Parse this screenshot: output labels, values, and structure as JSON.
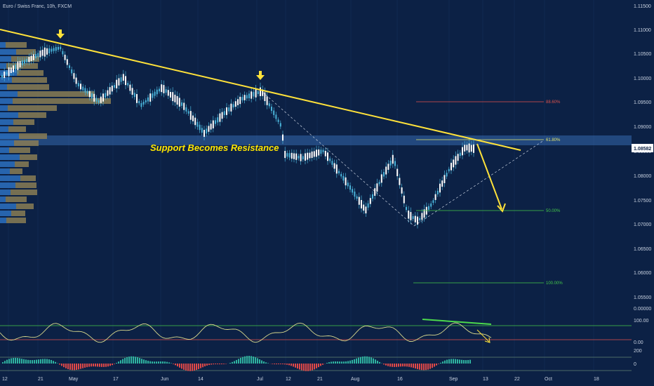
{
  "symbol_title": "Euro / Swiss Franc, 10h, FXCM",
  "price_axis": [
    "1.11500",
    "1.11000",
    "1.10500",
    "1.10000",
    "1.09500",
    "1.09000",
    "1.08500",
    "1.08000",
    "1.07500",
    "1.07000",
    "1.06500",
    "1.06000",
    "1.05500"
  ],
  "current_price": "1.08582",
  "annotation": "Support Becomes Resistance",
  "fib_levels": [
    {
      "label": "88.60%",
      "color": "#e0524c"
    },
    {
      "label": "61.80%",
      "color": "#e3e36b"
    },
    {
      "label": "50.00%",
      "color": "#44c84a"
    },
    {
      "label": "100.00%",
      "color": "#44c84a"
    }
  ],
  "oscillator_axis": [
    "0.00000",
    "100.00",
    "0.00"
  ],
  "histogram_axis": [
    "200",
    "0"
  ],
  "time_axis": [
    "12",
    "21",
    "May",
    "17",
    "Jun",
    "14",
    "Jul",
    "12",
    "21",
    "Aug",
    "16",
    "Sep",
    "13",
    "22",
    "Oct",
    "18"
  ],
  "colors": {
    "background": "#0c2145",
    "candle_up": "#ffffff",
    "candle_wick": "#4ab3d9",
    "trendline": "#ffe23a",
    "resistance_zone": "#3d78c4",
    "volume_profile_blue": "#2a6cb8",
    "volume_profile_tan": "#8a7c55",
    "oscillator_line": "#d9d98c",
    "divergence_line": "#4cd94c",
    "hist_pos": "#2fb3a0",
    "hist_neg": "#e04848"
  },
  "icons": [
    "down-arrow-marker-icon",
    "down-arrow-marker-icon",
    "projection-arrow-icon"
  ]
}
